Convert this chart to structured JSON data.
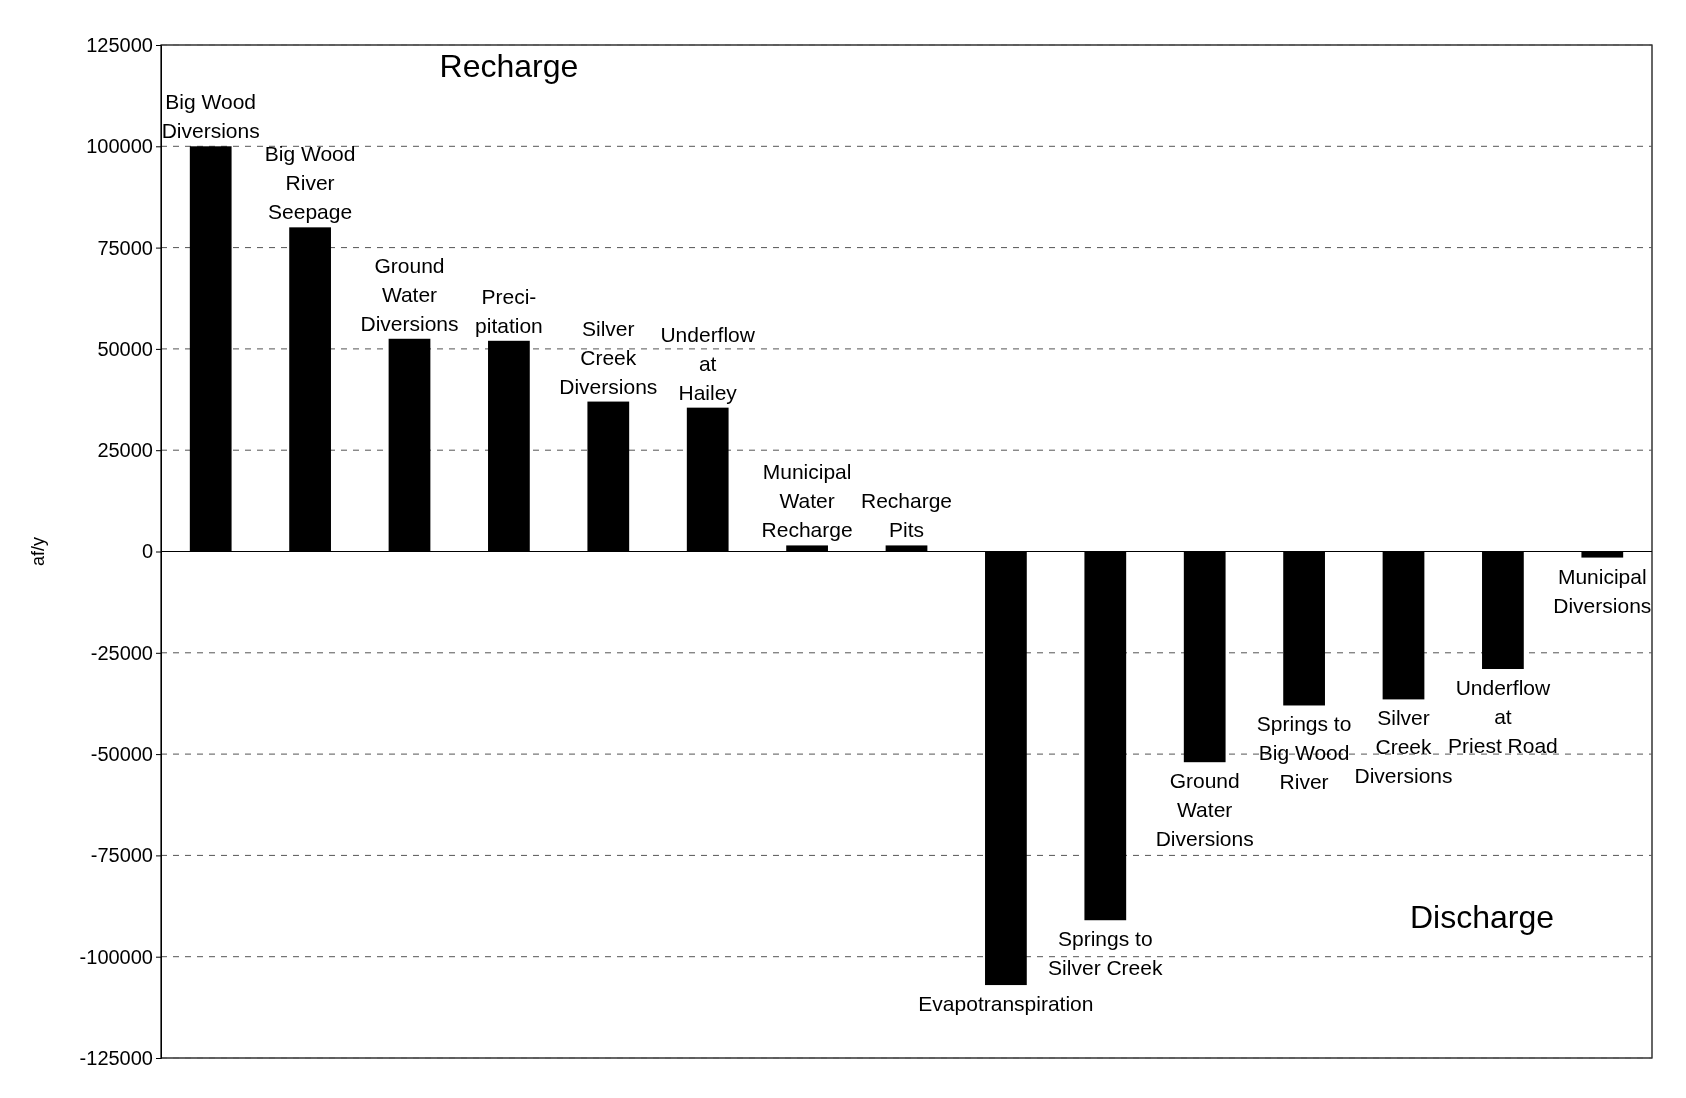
{
  "chart_data": {
    "type": "bar",
    "ylabel": "af/y",
    "categories": [
      "Big Wood\nDiversions",
      "Big Wood\nRiver\nSeepage",
      "Ground\nWater\nDiversions",
      "Preci-\npitation",
      "Silver\nCreek\nDiversions",
      "Underflow\nat\nHailey",
      "Municipal\nWater\nRecharge",
      "Recharge\nPits",
      "Evapotranspiration",
      "Springs to\nSilver Creek",
      "Ground\nWater\nDiversions",
      "Springs to\nBig Wood\nRiver",
      "Silver\nCreek\nDiversions",
      "Underflow\nat\nPriest Road",
      "Municipal\nDiversions"
    ],
    "values": [
      100000,
      80000,
      52500,
      52000,
      37000,
      35500,
      1500,
      1500,
      -107000,
      -91000,
      -52000,
      -38000,
      -36500,
      -29000,
      -1500
    ],
    "color": "#000000",
    "ylim": [
      -125000,
      125000
    ],
    "yticks": [
      -125000,
      -100000,
      -75000,
      -50000,
      -25000,
      0,
      25000,
      50000,
      75000,
      100000,
      125000
    ],
    "grid": "y",
    "annotations": [
      "Recharge",
      "Discharge"
    ]
  }
}
